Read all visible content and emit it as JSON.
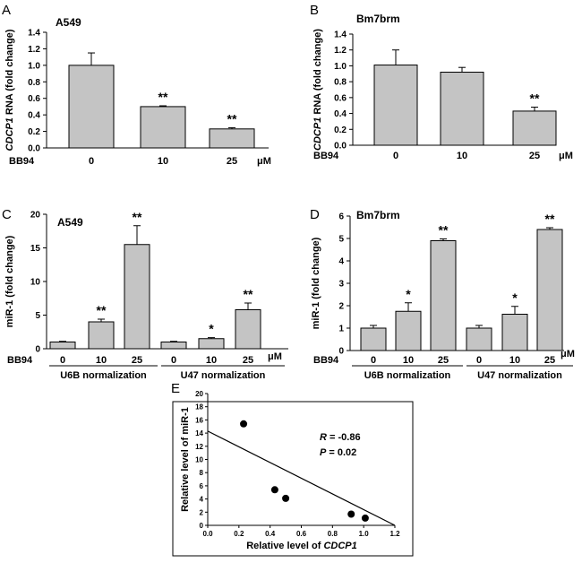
{
  "chart_data": [
    {
      "panel": "A",
      "type": "bar",
      "title": "A549",
      "ylabel_italic": "CDCP1",
      "ylabel_rest": " RNA (fold change)",
      "ylim": [
        0,
        1.4
      ],
      "yticks": [
        "0.0",
        "0.2",
        "0.4",
        "0.6",
        "0.8",
        "1.0",
        "1.2",
        "1.4"
      ],
      "treatment_label": "BB94",
      "unit": "μM",
      "categories": [
        "0",
        "10",
        "25"
      ],
      "values": [
        1.0,
        0.5,
        0.23
      ],
      "errors": [
        0.15,
        0.01,
        0.015
      ],
      "significance": [
        "",
        "**",
        "**"
      ]
    },
    {
      "panel": "B",
      "type": "bar",
      "title": "Bm7brm",
      "ylabel_italic": "CDCP1",
      "ylabel_rest": " RNA (fold change)",
      "ylim": [
        0,
        1.4
      ],
      "yticks": [
        "0.0",
        "0.2",
        "0.4",
        "0.6",
        "0.8",
        "1.0",
        "1.2",
        "1.4"
      ],
      "treatment_label": "BB94",
      "unit": "μM",
      "categories": [
        "0",
        "10",
        "25"
      ],
      "values": [
        1.01,
        0.92,
        0.43
      ],
      "errors": [
        0.19,
        0.06,
        0.05
      ],
      "significance": [
        "",
        "",
        "**"
      ]
    },
    {
      "panel": "C",
      "type": "bar",
      "title": "A549",
      "ylabel": "miR-1 (fold change)",
      "ylim": [
        0,
        20
      ],
      "yticks": [
        "0",
        "5",
        "10",
        "15",
        "20"
      ],
      "treatment_label": "BB94",
      "unit": "μM",
      "categories": [
        "0",
        "10",
        "25",
        "0",
        "10",
        "25"
      ],
      "values": [
        1.0,
        4.0,
        15.5,
        1.0,
        1.5,
        5.8
      ],
      "errors": [
        0.1,
        0.4,
        2.8,
        0.1,
        0.15,
        1.0
      ],
      "significance": [
        "",
        "**",
        "**",
        "",
        "*",
        "**"
      ],
      "groups": [
        "U6B normalization",
        "U47 normalization"
      ]
    },
    {
      "panel": "D",
      "type": "bar",
      "title": "Bm7brm",
      "ylabel": "miR-1 (fold change)",
      "ylim": [
        0,
        6
      ],
      "yticks": [
        "0",
        "1",
        "2",
        "3",
        "4",
        "5",
        "6"
      ],
      "treatment_label": "BB94",
      "unit": "μM",
      "categories": [
        "0",
        "10",
        "25",
        "0",
        "10",
        "25"
      ],
      "values": [
        1.0,
        1.75,
        4.9,
        1.0,
        1.62,
        5.4
      ],
      "errors": [
        0.12,
        0.38,
        0.08,
        0.12,
        0.35,
        0.08
      ],
      "significance": [
        "",
        "*",
        "**",
        "",
        "*",
        "**"
      ],
      "groups": [
        "U6B normalization",
        "U47 normalization"
      ]
    },
    {
      "panel": "E",
      "type": "scatter",
      "xlabel_prefix": "Relative level of ",
      "xlabel_italic": "CDCP1",
      "ylabel": "Relative level of miR-1",
      "xlim": [
        0,
        1.2
      ],
      "ylim": [
        0,
        20
      ],
      "xticks": [
        "0.0",
        "0.2",
        "0.4",
        "0.6",
        "0.8",
        "1.0",
        "1.2"
      ],
      "yticks": [
        "0",
        "2",
        "4",
        "6",
        "8",
        "10",
        "12",
        "14",
        "16",
        "18",
        "20"
      ],
      "points": [
        {
          "x": 0.23,
          "y": 15.4
        },
        {
          "x": 0.43,
          "y": 5.4
        },
        {
          "x": 0.5,
          "y": 4.1
        },
        {
          "x": 0.92,
          "y": 1.7
        },
        {
          "x": 1.01,
          "y": 1.1
        }
      ],
      "fit_line": {
        "x": [
          0.0,
          1.2
        ],
        "y": [
          14.3,
          0.0
        ]
      },
      "stat_R_label": "R",
      "stat_R_value": " = -0.86",
      "stat_P_label": "P",
      "stat_P_value": " = 0.02"
    }
  ]
}
